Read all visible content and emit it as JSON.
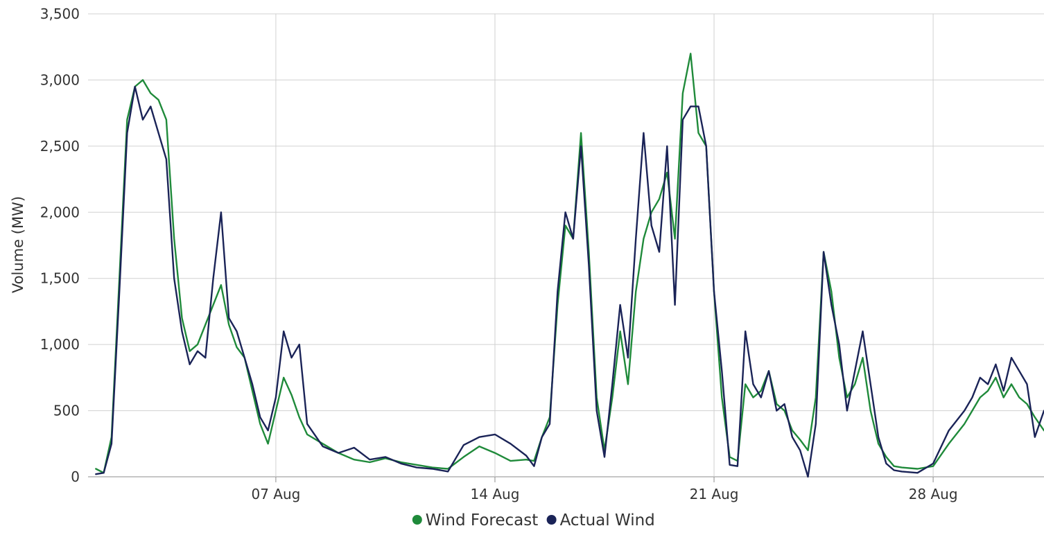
{
  "chart_data": {
    "type": "line",
    "title": "",
    "xlabel": "",
    "ylabel": "Volume (MW)",
    "ylim": [
      0,
      3500
    ],
    "yticks": [
      0,
      500,
      1000,
      1500,
      2000,
      2500,
      3000,
      3500
    ],
    "ytick_labels": [
      "0",
      "500",
      "1,000",
      "1,500",
      "2,000",
      "2,500",
      "3,000",
      "3,500"
    ],
    "xlim": [
      "2023-08-01",
      "2023-08-31T13:00"
    ],
    "xticks": [
      "2023-08-07",
      "2023-08-14",
      "2023-08-21",
      "2023-08-28"
    ],
    "xtick_labels": [
      "07 Aug",
      "14 Aug",
      "21 Aug",
      "28 Aug"
    ],
    "grid": true,
    "legend_position": "bottom-center",
    "series": [
      {
        "name": "Wind Forecast",
        "color": "#1f8a3a",
        "x": [
          "2023-08-01T06:00",
          "2023-08-01T12:00",
          "2023-08-01T18:00",
          "2023-08-02T00:00",
          "2023-08-02T06:00",
          "2023-08-02T12:00",
          "2023-08-02T18:00",
          "2023-08-03T00:00",
          "2023-08-03T06:00",
          "2023-08-03T12:00",
          "2023-08-03T18:00",
          "2023-08-04T00:00",
          "2023-08-04T06:00",
          "2023-08-04T12:00",
          "2023-08-04T18:00",
          "2023-08-05T00:00",
          "2023-08-05T06:00",
          "2023-08-05T12:00",
          "2023-08-05T18:00",
          "2023-08-06T00:00",
          "2023-08-06T06:00",
          "2023-08-06T12:00",
          "2023-08-06T18:00",
          "2023-08-07T00:00",
          "2023-08-07T06:00",
          "2023-08-07T12:00",
          "2023-08-07T18:00",
          "2023-08-08T00:00",
          "2023-08-08T12:00",
          "2023-08-09T00:00",
          "2023-08-09T12:00",
          "2023-08-10T00:00",
          "2023-08-10T12:00",
          "2023-08-11T00:00",
          "2023-08-11T12:00",
          "2023-08-12T00:00",
          "2023-08-12T12:00",
          "2023-08-13T00:00",
          "2023-08-13T12:00",
          "2023-08-14T00:00",
          "2023-08-14T12:00",
          "2023-08-15T00:00",
          "2023-08-15T06:00",
          "2023-08-15T12:00",
          "2023-08-15T18:00",
          "2023-08-16T00:00",
          "2023-08-16T06:00",
          "2023-08-16T12:00",
          "2023-08-16T18:00",
          "2023-08-17T00:00",
          "2023-08-17T06:00",
          "2023-08-17T12:00",
          "2023-08-17T18:00",
          "2023-08-18T00:00",
          "2023-08-18T06:00",
          "2023-08-18T12:00",
          "2023-08-18T18:00",
          "2023-08-19T00:00",
          "2023-08-19T06:00",
          "2023-08-19T12:00",
          "2023-08-19T18:00",
          "2023-08-20T00:00",
          "2023-08-20T06:00",
          "2023-08-20T12:00",
          "2023-08-20T18:00",
          "2023-08-21T00:00",
          "2023-08-21T06:00",
          "2023-08-21T12:00",
          "2023-08-21T18:00",
          "2023-08-22T00:00",
          "2023-08-22T06:00",
          "2023-08-22T12:00",
          "2023-08-22T18:00",
          "2023-08-23T00:00",
          "2023-08-23T06:00",
          "2023-08-23T12:00",
          "2023-08-23T18:00",
          "2023-08-24T00:00",
          "2023-08-24T06:00",
          "2023-08-24T12:00",
          "2023-08-24T18:00",
          "2023-08-25T00:00",
          "2023-08-25T06:00",
          "2023-08-25T12:00",
          "2023-08-25T18:00",
          "2023-08-26T00:00",
          "2023-08-26T06:00",
          "2023-08-26T12:00",
          "2023-08-26T18:00",
          "2023-08-27T00:00",
          "2023-08-27T12:00",
          "2023-08-28T00:00",
          "2023-08-28T12:00",
          "2023-08-29T00:00",
          "2023-08-29T06:00",
          "2023-08-29T12:00",
          "2023-08-29T18:00",
          "2023-08-30T00:00",
          "2023-08-30T06:00",
          "2023-08-30T12:00",
          "2023-08-30T18:00",
          "2023-08-31T00:00",
          "2023-08-31T06:00",
          "2023-08-31T13:00"
        ],
        "values": [
          60,
          30,
          300,
          1500,
          2700,
          2950,
          3000,
          2900,
          2850,
          2700,
          1800,
          1200,
          950,
          1000,
          1150,
          1300,
          1450,
          1150,
          980,
          900,
          650,
          400,
          250,
          500,
          750,
          620,
          450,
          320,
          250,
          180,
          130,
          110,
          140,
          110,
          90,
          70,
          60,
          150,
          230,
          180,
          120,
          130,
          120,
          300,
          450,
          1300,
          1900,
          1800,
          2600,
          1700,
          600,
          200,
          600,
          1100,
          700,
          1400,
          1800,
          2000,
          2100,
          2300,
          1800,
          2900,
          3200,
          2600,
          2500,
          1400,
          600,
          150,
          120,
          700,
          600,
          650,
          800,
          550,
          500,
          350,
          280,
          200,
          600,
          1700,
          1400,
          900,
          600,
          700,
          900,
          500,
          250,
          150,
          80,
          70,
          60,
          80,
          250,
          400,
          500,
          600,
          650,
          750,
          600,
          700,
          600,
          550,
          450,
          350
        ]
      },
      {
        "name": "Actual Wind",
        "color": "#1a2357",
        "x": [
          "2023-08-01T06:00",
          "2023-08-01T12:00",
          "2023-08-01T18:00",
          "2023-08-02T00:00",
          "2023-08-02T06:00",
          "2023-08-02T12:00",
          "2023-08-02T18:00",
          "2023-08-03T00:00",
          "2023-08-03T06:00",
          "2023-08-03T12:00",
          "2023-08-03T18:00",
          "2023-08-04T00:00",
          "2023-08-04T06:00",
          "2023-08-04T12:00",
          "2023-08-04T18:00",
          "2023-08-05T00:00",
          "2023-08-05T06:00",
          "2023-08-05T12:00",
          "2023-08-05T18:00",
          "2023-08-06T00:00",
          "2023-08-06T06:00",
          "2023-08-06T12:00",
          "2023-08-06T18:00",
          "2023-08-07T00:00",
          "2023-08-07T06:00",
          "2023-08-07T12:00",
          "2023-08-07T18:00",
          "2023-08-08T00:00",
          "2023-08-08T12:00",
          "2023-08-09T00:00",
          "2023-08-09T12:00",
          "2023-08-10T00:00",
          "2023-08-10T12:00",
          "2023-08-11T00:00",
          "2023-08-11T12:00",
          "2023-08-12T00:00",
          "2023-08-12T12:00",
          "2023-08-13T00:00",
          "2023-08-13T12:00",
          "2023-08-14T00:00",
          "2023-08-14T12:00",
          "2023-08-15T00:00",
          "2023-08-15T06:00",
          "2023-08-15T12:00",
          "2023-08-15T18:00",
          "2023-08-16T00:00",
          "2023-08-16T06:00",
          "2023-08-16T12:00",
          "2023-08-16T18:00",
          "2023-08-17T00:00",
          "2023-08-17T06:00",
          "2023-08-17T12:00",
          "2023-08-17T18:00",
          "2023-08-18T00:00",
          "2023-08-18T06:00",
          "2023-08-18T12:00",
          "2023-08-18T18:00",
          "2023-08-19T00:00",
          "2023-08-19T06:00",
          "2023-08-19T12:00",
          "2023-08-19T18:00",
          "2023-08-20T00:00",
          "2023-08-20T06:00",
          "2023-08-20T12:00",
          "2023-08-20T18:00",
          "2023-08-21T00:00",
          "2023-08-21T06:00",
          "2023-08-21T12:00",
          "2023-08-21T18:00",
          "2023-08-22T00:00",
          "2023-08-22T06:00",
          "2023-08-22T12:00",
          "2023-08-22T18:00",
          "2023-08-23T00:00",
          "2023-08-23T06:00",
          "2023-08-23T12:00",
          "2023-08-23T18:00",
          "2023-08-24T00:00",
          "2023-08-24T06:00",
          "2023-08-24T12:00",
          "2023-08-24T18:00",
          "2023-08-25T00:00",
          "2023-08-25T06:00",
          "2023-08-25T12:00",
          "2023-08-25T18:00",
          "2023-08-26T00:00",
          "2023-08-26T06:00",
          "2023-08-26T12:00",
          "2023-08-26T18:00",
          "2023-08-27T00:00",
          "2023-08-27T12:00",
          "2023-08-28T00:00",
          "2023-08-28T12:00",
          "2023-08-29T00:00",
          "2023-08-29T06:00",
          "2023-08-29T12:00",
          "2023-08-29T18:00",
          "2023-08-30T00:00",
          "2023-08-30T06:00",
          "2023-08-30T12:00",
          "2023-08-30T18:00",
          "2023-08-31T00:00",
          "2023-08-31T06:00",
          "2023-08-31T13:00"
        ],
        "values": [
          20,
          30,
          250,
          1400,
          2600,
          2950,
          2700,
          2800,
          2600,
          2400,
          1500,
          1100,
          850,
          950,
          900,
          1500,
          2000,
          1200,
          1100,
          900,
          700,
          450,
          350,
          600,
          1100,
          900,
          1000,
          400,
          230,
          180,
          220,
          130,
          150,
          100,
          70,
          60,
          40,
          240,
          300,
          320,
          250,
          160,
          80,
          300,
          400,
          1400,
          2000,
          1800,
          2500,
          1600,
          500,
          150,
          700,
          1300,
          900,
          1800,
          2600,
          1900,
          1700,
          2500,
          1300,
          2700,
          2800,
          2800,
          2500,
          1400,
          800,
          90,
          80,
          1100,
          700,
          600,
          800,
          500,
          550,
          300,
          200,
          0,
          400,
          1700,
          1300,
          1000,
          500,
          800,
          1100,
          700,
          300,
          100,
          50,
          40,
          30,
          100,
          350,
          500,
          600,
          750,
          700,
          850,
          650,
          900,
          800,
          700,
          300,
          500
        ]
      }
    ]
  }
}
